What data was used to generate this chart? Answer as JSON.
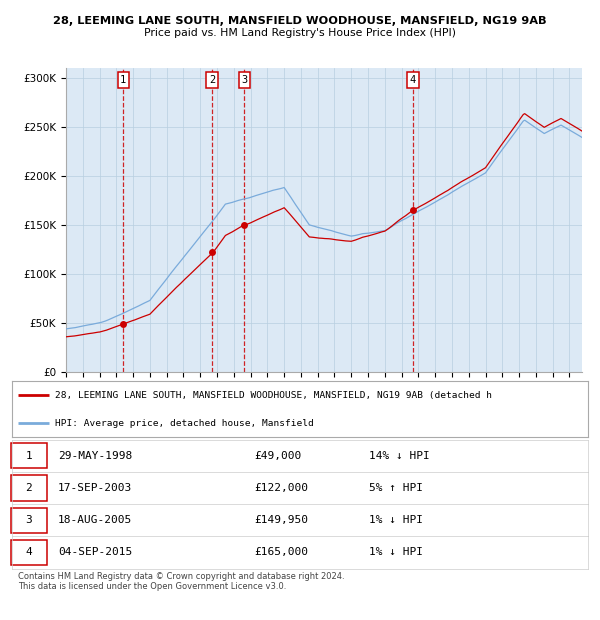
{
  "title1": "28, LEEMING LANE SOUTH, MANSFIELD WOODHOUSE, MANSFIELD, NG19 9AB",
  "title2": "Price paid vs. HM Land Registry's House Price Index (HPI)",
  "sale_dates_dec": [
    1998.413,
    2003.713,
    2005.63,
    2015.674
  ],
  "sale_prices": [
    49000,
    122000,
    149950,
    165000
  ],
  "sale_labels": [
    "1",
    "2",
    "3",
    "4"
  ],
  "sale_table": [
    [
      "1",
      "29-MAY-1998",
      "£49,000",
      "14% ↓ HPI"
    ],
    [
      "2",
      "17-SEP-2003",
      "£122,000",
      "5% ↑ HPI"
    ],
    [
      "3",
      "18-AUG-2005",
      "£149,950",
      "1% ↓ HPI"
    ],
    [
      "4",
      "04-SEP-2015",
      "£165,000",
      "1% ↓ HPI"
    ]
  ],
  "legend1": "28, LEEMING LANE SOUTH, MANSFIELD WOODHOUSE, MANSFIELD, NG19 9AB (detached h",
  "legend2": "HPI: Average price, detached house, Mansfield",
  "footnote1": "Contains HM Land Registry data © Crown copyright and database right 2024.",
  "footnote2": "This data is licensed under the Open Government Licence v3.0.",
  "hpi_color": "#7aabdb",
  "price_color": "#cc0000",
  "bg_color": "#dce9f5",
  "plot_bg": "#ffffff",
  "grid_color": "#b8cfe0",
  "ylim": [
    0,
    310000
  ],
  "yticks": [
    0,
    50000,
    100000,
    150000,
    200000,
    250000,
    300000
  ],
  "xstart": 1995.25,
  "xend": 2025.75
}
